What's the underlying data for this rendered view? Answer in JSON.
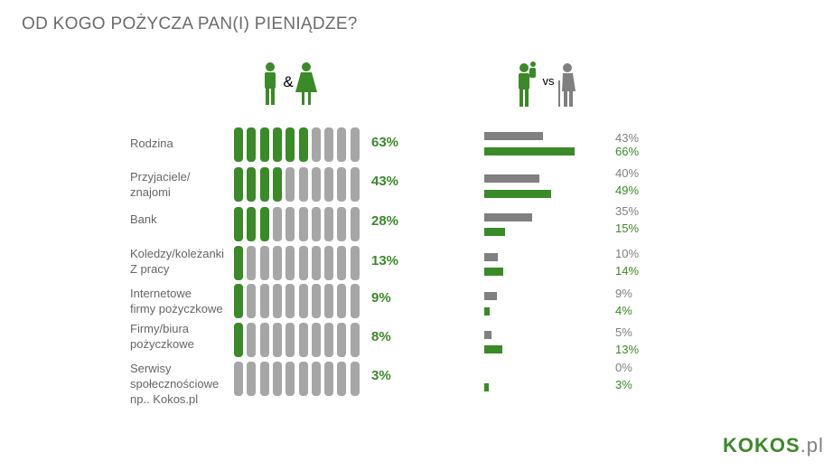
{
  "title": "OD KOGO POŻYCZA PAN(I) PIENIĄDZE?",
  "icons": {
    "gender_icon": "man-and-woman-icon",
    "ampersand": "&",
    "generation_icon": "parent-child-vs-elderly-icon",
    "vs": "vs"
  },
  "colors": {
    "green": "#3a8a28",
    "gray": "#a6a6a6",
    "dark_gray": "#808080",
    "text": "#666666"
  },
  "chart_data": [
    {
      "type": "bar",
      "categories": [
        "Rodzina",
        "Przyjaciele/\nznajomi",
        "Bank",
        "Koledzy/koleżanki\nZ pracy",
        "Internetowe\nfirmy pożyczkowe",
        "Firmy/biura\npożyczkowe",
        "Serwisy\nspołecznościowe\nnp.. Kokos.pl"
      ],
      "values": [
        63,
        43,
        28,
        13,
        9,
        8,
        3
      ],
      "value_labels": [
        "63%",
        "43%",
        "28%",
        "13%",
        "9%",
        "8%",
        "3%"
      ],
      "units_total": 10,
      "ylim": [
        0,
        100
      ]
    },
    {
      "type": "bar",
      "categories": [
        "Rodzina",
        "Przyjaciele/\nznajomi",
        "Bank",
        "Koledzy/koleżanki\nZ pracy",
        "Internetowe\nfirmy pożyczkowe",
        "Firmy/biura\npożyczkowe",
        "Serwisy\nspołecznościowe\nnp.. Kokos.pl"
      ],
      "series": [
        {
          "color": "#808080",
          "values": [
            43,
            40,
            35,
            10,
            9,
            5,
            0
          ],
          "labels": [
            "43%",
            "40%",
            "35%",
            "10%",
            "9%",
            "5%",
            "0%"
          ]
        },
        {
          "color": "#3a8a28",
          "values": [
            66,
            49,
            15,
            14,
            4,
            13,
            3
          ],
          "labels": [
            "66%",
            "49%",
            "15%",
            "14%",
            "4%",
            "13%",
            "3%"
          ]
        }
      ],
      "ylim": [
        0,
        66
      ]
    }
  ],
  "logo": {
    "text_green": "KOKO",
    "text_s": "S",
    "text_domain": ".pl"
  }
}
